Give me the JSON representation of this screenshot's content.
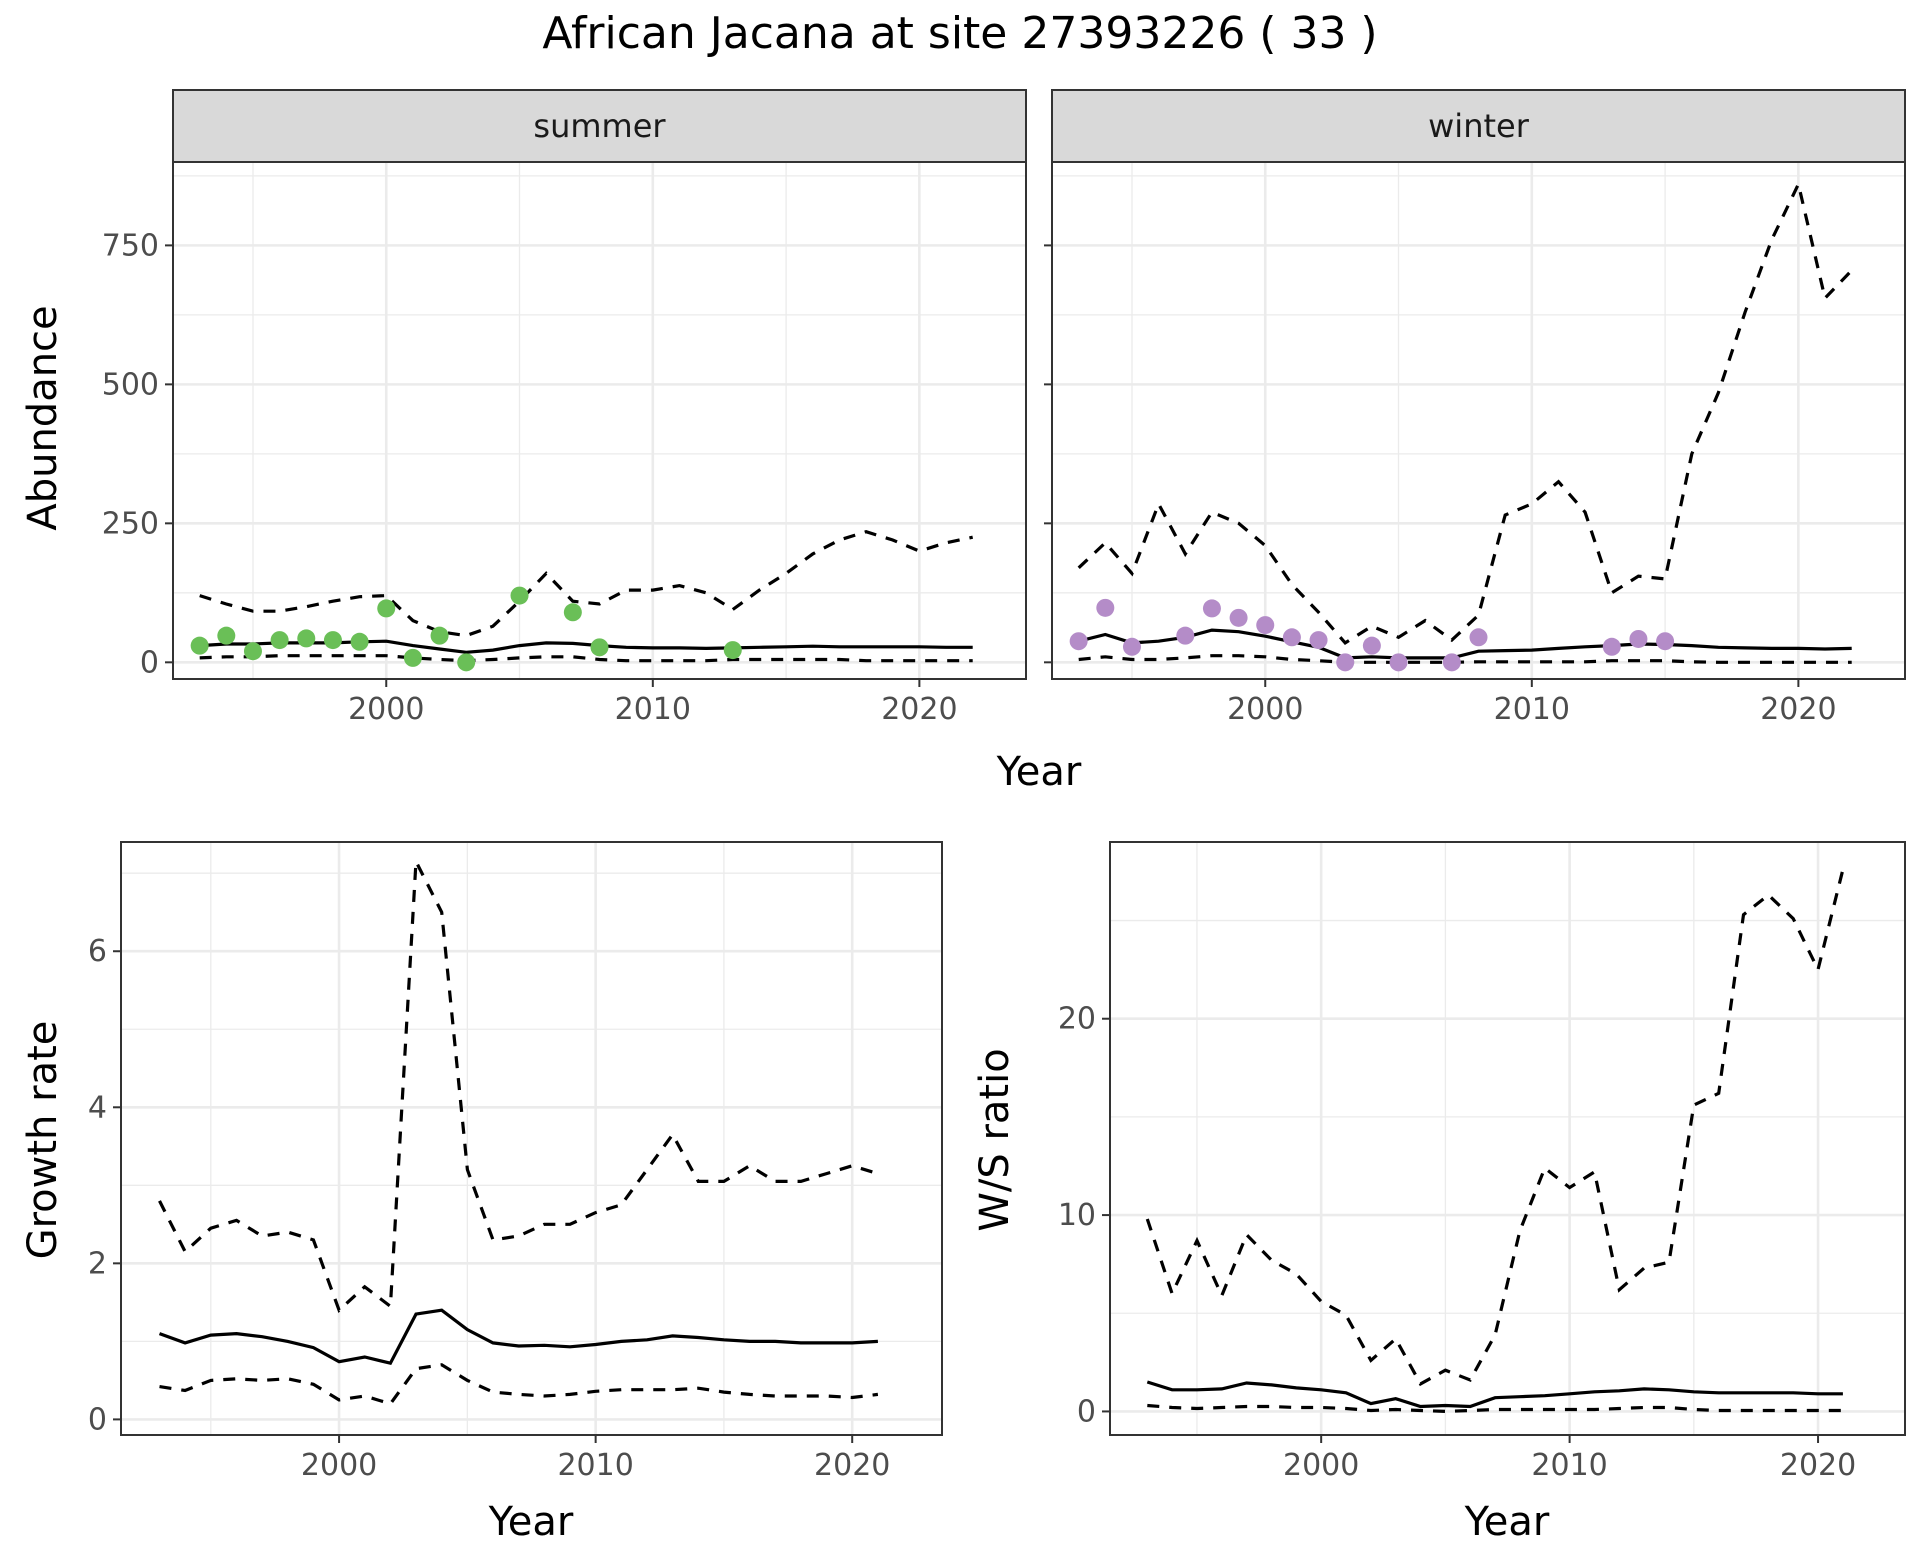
{
  "title": "African Jacana at site 27393226 ( 33 )",
  "chart_data": [
    {
      "type": "line",
      "facet": "summer",
      "xlabel": "Year",
      "ylabel": "Abundance",
      "xlim": [
        1992,
        2024
      ],
      "ylim": [
        -30,
        900
      ],
      "xticks": [
        2000,
        2010,
        2020
      ],
      "yticks": [
        0,
        250,
        500,
        750
      ],
      "point_color": "#6abf57",
      "series": [
        {
          "style": "solid",
          "x": [
            1993,
            1994,
            1995,
            1996,
            1997,
            1998,
            1999,
            2000,
            2001,
            2002,
            2003,
            2004,
            2005,
            2006,
            2007,
            2008,
            2009,
            2010,
            2011,
            2012,
            2013,
            2014,
            2015,
            2016,
            2017,
            2018,
            2019,
            2020,
            2021,
            2022
          ],
          "y": [
            30,
            33,
            33,
            35,
            35,
            35,
            37,
            38,
            30,
            24,
            18,
            22,
            30,
            35,
            34,
            30,
            27,
            26,
            26,
            25,
            26,
            27,
            28,
            29,
            28,
            28,
            28,
            28,
            27,
            27
          ]
        },
        {
          "style": "dashed",
          "x": [
            1993,
            1994,
            1995,
            1996,
            1997,
            1998,
            1999,
            2000,
            2001,
            2002,
            2003,
            2004,
            2005,
            2006,
            2007,
            2008,
            2009,
            2010,
            2011,
            2012,
            2013,
            2014,
            2015,
            2016,
            2017,
            2018,
            2019,
            2020,
            2021,
            2022
          ],
          "y": [
            120,
            105,
            92,
            92,
            100,
            110,
            118,
            120,
            75,
            55,
            48,
            65,
            110,
            160,
            110,
            105,
            130,
            130,
            138,
            125,
            95,
            130,
            160,
            195,
            220,
            235,
            220,
            200,
            215,
            225
          ]
        },
        {
          "style": "dashed",
          "x": [
            1993,
            1994,
            1995,
            1996,
            1997,
            1998,
            1999,
            2000,
            2001,
            2002,
            2003,
            2004,
            2005,
            2006,
            2007,
            2008,
            2009,
            2010,
            2011,
            2012,
            2013,
            2014,
            2015,
            2016,
            2017,
            2018,
            2019,
            2020,
            2021,
            2022
          ],
          "y": [
            8,
            10,
            10,
            12,
            12,
            12,
            12,
            12,
            8,
            5,
            3,
            5,
            8,
            10,
            10,
            5,
            3,
            3,
            3,
            3,
            5,
            5,
            5,
            5,
            5,
            3,
            3,
            3,
            3,
            3
          ]
        }
      ],
      "points": {
        "x": [
          1993,
          1994,
          1995,
          1996,
          1997,
          1998,
          1999,
          2000,
          2001,
          2002,
          2003,
          2005,
          2007,
          2008,
          2013
        ],
        "y": [
          30,
          48,
          20,
          40,
          43,
          40,
          37,
          97,
          8,
          48,
          0,
          120,
          90,
          27,
          22
        ]
      }
    },
    {
      "type": "line",
      "facet": "winter",
      "xlabel": "Year",
      "ylabel": "Abundance",
      "xlim": [
        1992,
        2024
      ],
      "ylim": [
        -30,
        900
      ],
      "xticks": [
        2000,
        2010,
        2020
      ],
      "yticks": [
        0,
        250,
        500,
        750
      ],
      "point_color": "#b48cc8",
      "series": [
        {
          "style": "solid",
          "x": [
            1993,
            1994,
            1995,
            1996,
            1997,
            1998,
            1999,
            2000,
            2001,
            2002,
            2003,
            2004,
            2005,
            2006,
            2007,
            2008,
            2009,
            2010,
            2011,
            2012,
            2013,
            2014,
            2015,
            2016,
            2017,
            2018,
            2019,
            2020,
            2021,
            2022
          ],
          "y": [
            38,
            50,
            35,
            38,
            45,
            58,
            55,
            47,
            37,
            27,
            8,
            10,
            8,
            8,
            8,
            20,
            21,
            22,
            25,
            28,
            30,
            33,
            32,
            30,
            27,
            26,
            25,
            25,
            24,
            25
          ]
        },
        {
          "style": "dashed",
          "x": [
            1993,
            1994,
            1995,
            1996,
            1997,
            1998,
            1999,
            2000,
            2001,
            2002,
            2003,
            2004,
            2005,
            2006,
            2007,
            2008,
            2009,
            2010,
            2011,
            2012,
            2013,
            2014,
            2015,
            2016,
            2017,
            2018,
            2019,
            2020,
            2021,
            2022
          ],
          "y": [
            170,
            215,
            160,
            285,
            195,
            270,
            250,
            210,
            140,
            90,
            35,
            65,
            45,
            75,
            40,
            85,
            265,
            285,
            325,
            270,
            125,
            155,
            150,
            375,
            485,
            630,
            760,
            860,
            655,
            705
          ]
        },
        {
          "style": "dashed",
          "x": [
            1993,
            1994,
            1995,
            1996,
            1997,
            1998,
            1999,
            2000,
            2001,
            2002,
            2003,
            2004,
            2005,
            2006,
            2007,
            2008,
            2009,
            2010,
            2011,
            2012,
            2013,
            2014,
            2015,
            2016,
            2017,
            2018,
            2019,
            2020,
            2021,
            2022
          ],
          "y": [
            5,
            10,
            5,
            5,
            8,
            12,
            12,
            10,
            5,
            3,
            0,
            0,
            0,
            0,
            0,
            1,
            1,
            1,
            1,
            1,
            3,
            3,
            3,
            1,
            0,
            0,
            0,
            0,
            0,
            0
          ]
        }
      ],
      "points": {
        "x": [
          1993,
          1994,
          1995,
          1997,
          1998,
          1999,
          2000,
          2001,
          2002,
          2003,
          2004,
          2005,
          2007,
          2008,
          2013,
          2014,
          2015
        ],
        "y": [
          38,
          98,
          28,
          48,
          97,
          80,
          67,
          45,
          40,
          0,
          30,
          0,
          0,
          45,
          28,
          42,
          38
        ]
      }
    },
    {
      "type": "line",
      "xlabel": "Year",
      "ylabel": "Growth rate",
      "xlim": [
        1991.5,
        2023.5
      ],
      "ylim": [
        -0.2,
        7.4
      ],
      "xticks": [
        2000,
        2010,
        2020
      ],
      "yticks": [
        0,
        2,
        4,
        6
      ],
      "series": [
        {
          "style": "solid",
          "x": [
            1993,
            1994,
            1995,
            1996,
            1997,
            1998,
            1999,
            2000,
            2001,
            2002,
            2003,
            2004,
            2005,
            2006,
            2007,
            2008,
            2009,
            2010,
            2011,
            2012,
            2013,
            2014,
            2015,
            2016,
            2017,
            2018,
            2019,
            2020,
            2021
          ],
          "y": [
            1.1,
            0.98,
            1.08,
            1.1,
            1.06,
            1.0,
            0.92,
            0.74,
            0.8,
            0.72,
            1.35,
            1.4,
            1.15,
            0.98,
            0.94,
            0.95,
            0.93,
            0.96,
            1.0,
            1.02,
            1.07,
            1.05,
            1.02,
            1.0,
            1.0,
            0.98,
            0.98,
            0.98,
            1.0
          ]
        },
        {
          "style": "dashed",
          "x": [
            1993,
            1994,
            1995,
            1996,
            1997,
            1998,
            1999,
            2000,
            2001,
            2002,
            2003,
            2004,
            2005,
            2006,
            2007,
            2008,
            2009,
            2010,
            2011,
            2012,
            2013,
            2014,
            2015,
            2016,
            2017,
            2018,
            2019,
            2020,
            2021
          ],
          "y": [
            2.8,
            2.15,
            2.45,
            2.55,
            2.35,
            2.4,
            2.3,
            1.4,
            1.7,
            1.45,
            7.15,
            6.5,
            3.2,
            2.3,
            2.35,
            2.5,
            2.5,
            2.65,
            2.75,
            3.2,
            3.65,
            3.05,
            3.05,
            3.25,
            3.05,
            3.05,
            3.15,
            3.25,
            3.15
          ]
        },
        {
          "style": "dashed",
          "x": [
            1993,
            1994,
            1995,
            1996,
            1997,
            1998,
            1999,
            2000,
            2001,
            2002,
            2003,
            2004,
            2005,
            2006,
            2007,
            2008,
            2009,
            2010,
            2011,
            2012,
            2013,
            2014,
            2015,
            2016,
            2017,
            2018,
            2019,
            2020,
            2021
          ],
          "y": [
            0.42,
            0.37,
            0.5,
            0.52,
            0.5,
            0.52,
            0.45,
            0.25,
            0.3,
            0.2,
            0.65,
            0.7,
            0.5,
            0.35,
            0.32,
            0.3,
            0.32,
            0.36,
            0.38,
            0.38,
            0.38,
            0.4,
            0.35,
            0.32,
            0.3,
            0.3,
            0.3,
            0.28,
            0.32
          ]
        }
      ]
    },
    {
      "type": "line",
      "xlabel": "Year",
      "ylabel": "W/S ratio",
      "xlim": [
        1991.5,
        2023.5
      ],
      "ylim": [
        -1.2,
        29
      ],
      "xticks": [
        2000,
        2010,
        2020
      ],
      "yticks": [
        0,
        10,
        20
      ],
      "series": [
        {
          "style": "solid",
          "x": [
            1993,
            1994,
            1995,
            1996,
            1997,
            1998,
            1999,
            2000,
            2001,
            2002,
            2003,
            2004,
            2005,
            2006,
            2007,
            2008,
            2009,
            2010,
            2011,
            2012,
            2013,
            2014,
            2015,
            2016,
            2017,
            2018,
            2019,
            2020,
            2021
          ],
          "y": [
            1.5,
            1.1,
            1.1,
            1.15,
            1.45,
            1.35,
            1.2,
            1.1,
            0.95,
            0.4,
            0.65,
            0.25,
            0.3,
            0.25,
            0.7,
            0.75,
            0.8,
            0.9,
            1.0,
            1.05,
            1.15,
            1.1,
            1.0,
            0.95,
            0.95,
            0.95,
            0.95,
            0.9,
            0.9
          ]
        },
        {
          "style": "dashed",
          "x": [
            1993,
            1994,
            1995,
            1996,
            1997,
            1998,
            1999,
            2000,
            2001,
            2002,
            2003,
            2004,
            2005,
            2006,
            2007,
            2008,
            2009,
            2010,
            2011,
            2012,
            2013,
            2014,
            2015,
            2016,
            2017,
            2018,
            2019,
            2020,
            2021
          ],
          "y": [
            9.8,
            6.0,
            8.7,
            5.9,
            9.0,
            7.7,
            7.0,
            5.6,
            4.9,
            2.6,
            3.7,
            1.4,
            2.1,
            1.6,
            3.9,
            9.2,
            12.4,
            11.4,
            12.2,
            6.2,
            7.3,
            7.6,
            15.6,
            16.2,
            25.3,
            26.3,
            25.1,
            22.5,
            27.6
          ]
        },
        {
          "style": "dashed",
          "x": [
            1993,
            1994,
            1995,
            1996,
            1997,
            1998,
            1999,
            2000,
            2001,
            2002,
            2003,
            2004,
            2005,
            2006,
            2007,
            2008,
            2009,
            2010,
            2011,
            2012,
            2013,
            2014,
            2015,
            2016,
            2017,
            2018,
            2019,
            2020,
            2021
          ],
          "y": [
            0.3,
            0.2,
            0.15,
            0.2,
            0.25,
            0.25,
            0.2,
            0.2,
            0.15,
            0.05,
            0.1,
            0.05,
            0.0,
            0.05,
            0.1,
            0.1,
            0.1,
            0.1,
            0.1,
            0.15,
            0.2,
            0.2,
            0.1,
            0.05,
            0.05,
            0.05,
            0.05,
            0.05,
            0.05
          ]
        }
      ]
    }
  ]
}
